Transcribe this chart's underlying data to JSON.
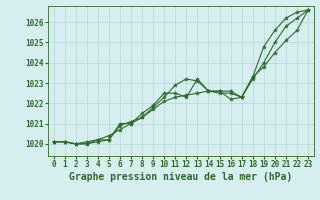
{
  "background_color": "#d6eeee",
  "grid_color": "#b0d8d8",
  "line_color": "#2d6b2d",
  "title": "Graphe pression niveau de la mer (hPa)",
  "xlim": [
    -0.5,
    23.5
  ],
  "ylim": [
    1019.4,
    1026.8
  ],
  "yticks": [
    1020,
    1021,
    1022,
    1023,
    1024,
    1025,
    1026
  ],
  "xticks": [
    0,
    1,
    2,
    3,
    4,
    5,
    6,
    7,
    8,
    9,
    10,
    11,
    12,
    13,
    14,
    15,
    16,
    17,
    18,
    19,
    20,
    21,
    22,
    23
  ],
  "line1_x": [
    0,
    1,
    2,
    3,
    4,
    5,
    6,
    7,
    8,
    9,
    10,
    11,
    12,
    13,
    14,
    15,
    16,
    17,
    18,
    19,
    20,
    21,
    22,
    23
  ],
  "line1_y": [
    1020.1,
    1020.1,
    1020.0,
    1020.0,
    1020.1,
    1020.2,
    1020.9,
    1021.1,
    1021.3,
    1021.8,
    1022.3,
    1022.9,
    1023.2,
    1023.1,
    1022.6,
    1022.6,
    1022.6,
    1022.3,
    1023.3,
    1024.8,
    1025.6,
    1026.2,
    1026.5,
    1026.6
  ],
  "line2_x": [
    0,
    1,
    2,
    3,
    4,
    5,
    6,
    7,
    8,
    9,
    10,
    11,
    12,
    13,
    14,
    15,
    16,
    17,
    18,
    19,
    20,
    21,
    22,
    23
  ],
  "line2_y": [
    1020.1,
    1020.1,
    1020.0,
    1020.1,
    1020.2,
    1020.4,
    1020.7,
    1021.0,
    1021.5,
    1021.9,
    1022.5,
    1022.5,
    1022.3,
    1023.2,
    1022.6,
    1022.6,
    1022.2,
    1022.3,
    1023.3,
    1023.8,
    1024.5,
    1025.1,
    1025.6,
    1026.6
  ],
  "line3_x": [
    0,
    1,
    2,
    3,
    4,
    5,
    6,
    7,
    8,
    9,
    10,
    11,
    12,
    13,
    14,
    15,
    16,
    17,
    18,
    19,
    20,
    21,
    22,
    23
  ],
  "line3_y": [
    1020.1,
    1020.1,
    1020.0,
    1020.0,
    1020.2,
    1020.2,
    1021.0,
    1021.0,
    1021.3,
    1021.7,
    1022.1,
    1022.3,
    1022.4,
    1022.5,
    1022.6,
    1022.5,
    1022.5,
    1022.3,
    1023.2,
    1024.0,
    1025.0,
    1025.8,
    1026.2,
    1026.6
  ],
  "title_fontsize": 7,
  "tick_fontsize": 5.5,
  "linewidth": 0.8,
  "markersize": 3.0
}
